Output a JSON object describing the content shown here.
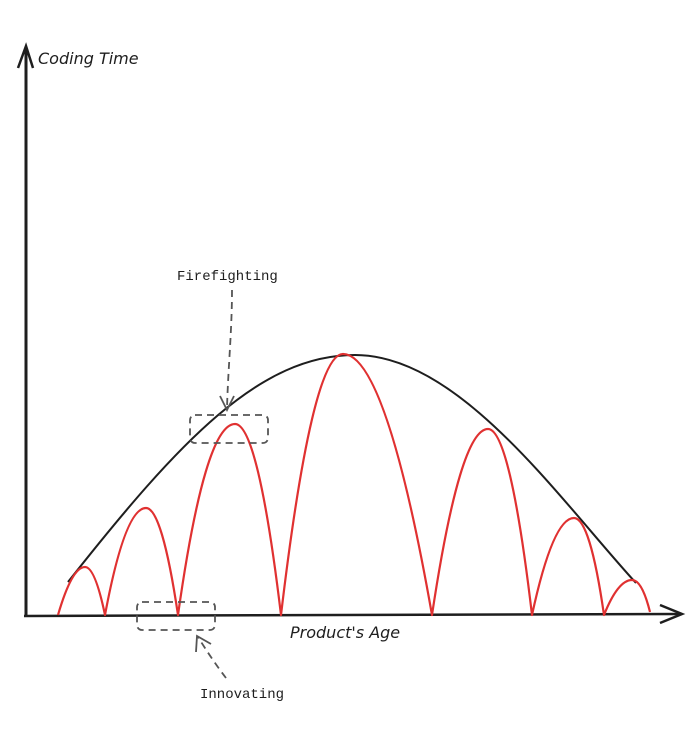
{
  "axes": {
    "y_label": "Coding Time",
    "x_label": "Product's Age"
  },
  "annotations": [
    {
      "label": "Firefighting"
    },
    {
      "label": "Innovating"
    }
  ]
}
